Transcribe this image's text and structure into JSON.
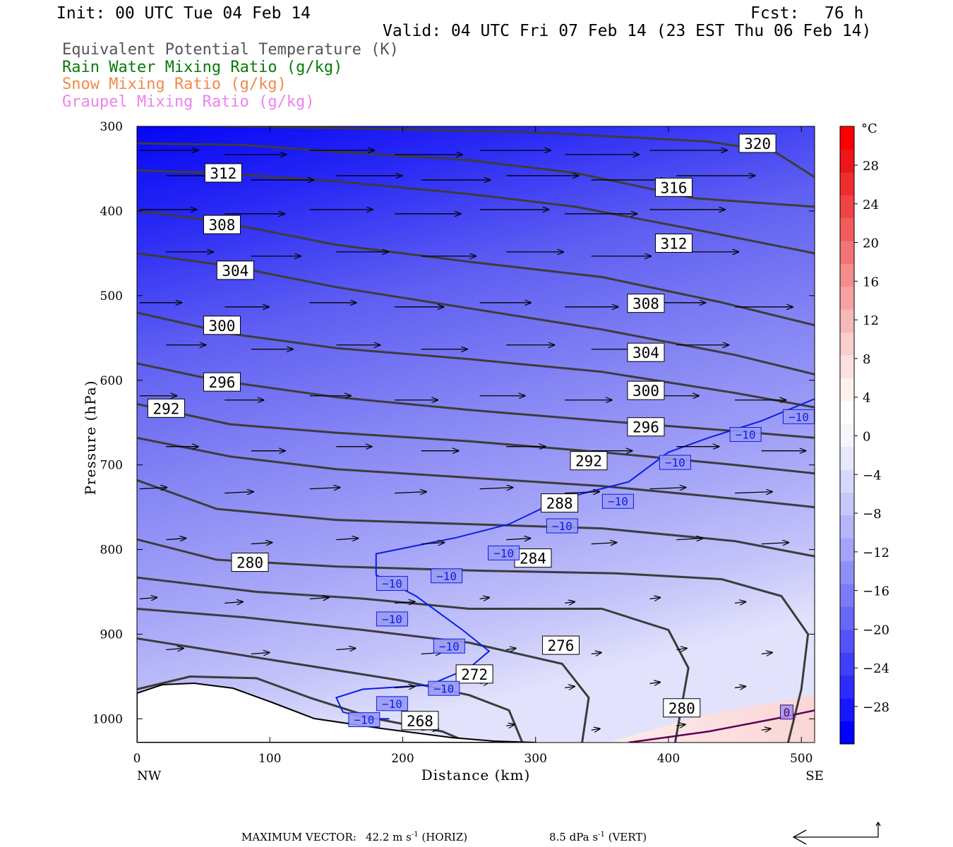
{
  "header": {
    "init": "Init: 00 UTC Tue 04 Feb 14",
    "fcst_label": "Fcst:",
    "fcst_value": "76 h",
    "valid": "Valid: 04 UTC Fri 07 Feb 14 (23 EST Thu 06 Feb 14)"
  },
  "legend": [
    {
      "text": "Equivalent Potential Temperature (K)",
      "color": "#555555"
    },
    {
      "text": "Rain Water Mixing Ratio (g/kg)",
      "color": "#0a7a0a"
    },
    {
      "text": "Snow Mixing Ratio (g/kg)",
      "color": "#f08a4b"
    },
    {
      "text": "Graupel Mixing Ratio (g/kg)",
      "color": "#ee82ee"
    }
  ],
  "footer": {
    "max_vector_label": "MAXIMUM VECTOR:",
    "horiz_value": "42.2 m s",
    "horiz_exp": "-1",
    "horiz_tag": "(HORIZ)",
    "vert_value": "8.5 dPa s",
    "vert_exp": "-1",
    "vert_tag": "(VERT)"
  },
  "chart_data": {
    "type": "cross-section",
    "xlabel": "Distance (km)",
    "ylabel": "Pressure (hPa)",
    "xlim": [
      0,
      510
    ],
    "ylim": [
      300,
      1028
    ],
    "x_ticks": [
      0,
      100,
      200,
      300,
      400,
      500
    ],
    "y_ticks": [
      300,
      400,
      500,
      600,
      700,
      800,
      900,
      1000
    ],
    "x_end_labels": [
      "NW",
      "SE"
    ],
    "colorbar": {
      "unit": "°C",
      "tick_labels": [
        "28",
        "24",
        "20",
        "16",
        "12",
        "8",
        "4",
        "0",
        "−4",
        "−8",
        "−12",
        "−16",
        "−20",
        "−24",
        "−28"
      ],
      "colors": [
        "#0000ff",
        "#1717fd",
        "#2b2bfc",
        "#3f3ffa",
        "#5353f9",
        "#6767f8",
        "#7b7bf8",
        "#8f8ff8",
        "#a3a3f9",
        "#b5b5fa",
        "#c7c7fb",
        "#d8d8fc",
        "#e8e8fd",
        "#f5f5fe",
        "#ffffff",
        "#fff0f0",
        "#fde0e0",
        "#fbcdcd",
        "#f9b8b8",
        "#f7a2a2",
        "#f58b8b",
        "#f37474",
        "#f25c5c",
        "#f04444",
        "#ef2d2d",
        "#ee1616",
        "#ff0000"
      ]
    },
    "theta_e_contours": [
      {
        "label": "268",
        "points": [
          [
            0,
            965
          ],
          [
            40,
            950
          ],
          [
            90,
            952
          ],
          [
            130,
            975
          ],
          [
            180,
            1000
          ],
          [
            230,
            1015
          ],
          [
            245,
            1025
          ]
        ]
      },
      {
        "label": "272",
        "points": [
          [
            0,
            905
          ],
          [
            40,
            915
          ],
          [
            120,
            935
          ],
          [
            200,
            955
          ],
          [
            250,
            972
          ],
          [
            280,
            990
          ],
          [
            290,
            1028
          ]
        ]
      },
      {
        "label": "276",
        "points": [
          [
            0,
            870
          ],
          [
            80,
            880
          ],
          [
            170,
            895
          ],
          [
            250,
            910
          ],
          [
            320,
            935
          ],
          [
            340,
            975
          ],
          [
            335,
            1028
          ]
        ]
      },
      {
        "label": "280",
        "points": [
          [
            0,
            833
          ],
          [
            90,
            850
          ],
          [
            170,
            858
          ],
          [
            250,
            870
          ],
          [
            350,
            870
          ],
          [
            400,
            895
          ],
          [
            415,
            940
          ],
          [
            405,
            1028
          ]
        ]
      },
      {
        "label": "284",
        "points": [
          [
            0,
            788
          ],
          [
            60,
            812
          ],
          [
            150,
            820
          ],
          [
            260,
            825
          ],
          [
            360,
            828
          ],
          [
            440,
            835
          ],
          [
            485,
            855
          ],
          [
            505,
            900
          ],
          [
            500,
            965
          ],
          [
            490,
            1028
          ]
        ]
      },
      {
        "label": "288",
        "points": [
          [
            0,
            718
          ],
          [
            60,
            752
          ],
          [
            150,
            765
          ],
          [
            250,
            770
          ],
          [
            350,
            775
          ],
          [
            450,
            790
          ],
          [
            510,
            808
          ]
        ]
      },
      {
        "label": "292",
        "points": [
          [
            0,
            668
          ],
          [
            70,
            690
          ],
          [
            150,
            705
          ],
          [
            250,
            715
          ],
          [
            350,
            725
          ],
          [
            450,
            740
          ],
          [
            510,
            750
          ]
        ]
      },
      {
        "label": "296",
        "points": [
          [
            0,
            628
          ],
          [
            70,
            652
          ],
          [
            150,
            662
          ],
          [
            250,
            672
          ],
          [
            350,
            685
          ],
          [
            450,
            700
          ],
          [
            510,
            710
          ]
        ]
      },
      {
        "label": "300",
        "points": [
          [
            0,
            580
          ],
          [
            60,
            600
          ],
          [
            150,
            620
          ],
          [
            250,
            635
          ],
          [
            350,
            648
          ],
          [
            450,
            660
          ],
          [
            510,
            668
          ]
        ]
      },
      {
        "label": "304",
        "points": [
          [
            0,
            520
          ],
          [
            70,
            545
          ],
          [
            150,
            562
          ],
          [
            250,
            575
          ],
          [
            350,
            590
          ],
          [
            450,
            615
          ],
          [
            510,
            632
          ]
        ]
      },
      {
        "label": "308",
        "points": [
          [
            0,
            450
          ],
          [
            70,
            465
          ],
          [
            150,
            490
          ],
          [
            250,
            515
          ],
          [
            350,
            540
          ],
          [
            450,
            570
          ],
          [
            510,
            593
          ]
        ]
      },
      {
        "label": "312",
        "points": [
          [
            0,
            400
          ],
          [
            60,
            412
          ],
          [
            150,
            440
          ],
          [
            250,
            460
          ],
          [
            350,
            478
          ],
          [
            440,
            508
          ],
          [
            510,
            535
          ]
        ]
      },
      {
        "label": "316",
        "points": [
          [
            0,
            352
          ],
          [
            60,
            355
          ],
          [
            150,
            365
          ],
          [
            250,
            380
          ],
          [
            330,
            395
          ],
          [
            430,
            425
          ],
          [
            510,
            450
          ]
        ]
      },
      {
        "label": "320",
        "points": [
          [
            0,
            320
          ],
          [
            80,
            322
          ],
          [
            150,
            330
          ],
          [
            250,
            340
          ],
          [
            330,
            355
          ],
          [
            420,
            385
          ],
          [
            510,
            395
          ]
        ]
      },
      {
        "label": "",
        "points": [
          [
            0,
            298
          ],
          [
            150,
            302
          ],
          [
            300,
            307
          ],
          [
            430,
            318
          ],
          [
            480,
            330
          ],
          [
            510,
            360
          ]
        ]
      }
    ],
    "theta_e_labels": [
      {
        "text": "312",
        "x": 65,
        "p": 355
      },
      {
        "text": "308",
        "x": 64,
        "p": 416
      },
      {
        "text": "304",
        "x": 74,
        "p": 470
      },
      {
        "text": "300",
        "x": 64,
        "p": 535
      },
      {
        "text": "296",
        "x": 64,
        "p": 602
      },
      {
        "text": "292",
        "x": 22,
        "p": 633
      },
      {
        "text": "280",
        "x": 85,
        "p": 815
      },
      {
        "text": "268",
        "x": 213,
        "p": 1002
      },
      {
        "text": "272",
        "x": 254,
        "p": 947
      },
      {
        "text": "276",
        "x": 319,
        "p": 913
      },
      {
        "text": "280",
        "x": 410,
        "p": 987
      },
      {
        "text": "284",
        "x": 298,
        "p": 810
      },
      {
        "text": "288",
        "x": 318,
        "p": 745
      },
      {
        "text": "292",
        "x": 340,
        "p": 695
      },
      {
        "text": "296",
        "x": 383,
        "p": 655
      },
      {
        "text": "300",
        "x": 383,
        "p": 612
      },
      {
        "text": "304",
        "x": 383,
        "p": 567
      },
      {
        "text": "308",
        "x": 383,
        "p": 509
      },
      {
        "text": "312",
        "x": 404,
        "p": 438
      },
      {
        "text": "316",
        "x": 404,
        "p": 372
      },
      {
        "text": "320",
        "x": 467,
        "p": 320
      }
    ],
    "temperature_contours": [
      {
        "label": "−10",
        "points": [
          [
            510,
            622
          ],
          [
            470,
            648
          ],
          [
            430,
            668
          ],
          [
            400,
            685
          ],
          [
            370,
            720
          ],
          [
            320,
            740
          ],
          [
            280,
            770
          ],
          [
            240,
            786
          ],
          [
            180,
            805
          ],
          [
            180,
            830
          ],
          [
            210,
            855
          ],
          [
            245,
            895
          ],
          [
            265,
            920
          ],
          [
            250,
            940
          ],
          [
            220,
            960
          ],
          [
            170,
            965
          ],
          [
            150,
            975
          ],
          [
            155,
            992
          ],
          [
            175,
            1000
          ],
          [
            190,
            1000
          ]
        ]
      },
      {
        "label": "0",
        "points": [
          [
            370,
            1028
          ],
          [
            430,
            1015
          ],
          [
            480,
            1000
          ],
          [
            510,
            990
          ]
        ]
      }
    ],
    "temperature_labels": [
      {
        "text": "−10",
        "x": 498,
        "p": 643
      },
      {
        "text": "−10",
        "x": 458,
        "p": 664
      },
      {
        "text": "−10",
        "x": 405,
        "p": 697
      },
      {
        "text": "−10",
        "x": 362,
        "p": 743
      },
      {
        "text": "−10",
        "x": 320,
        "p": 772
      },
      {
        "text": "−10",
        "x": 276,
        "p": 804
      },
      {
        "text": "−10",
        "x": 233,
        "p": 831
      },
      {
        "text": "−10",
        "x": 192,
        "p": 840
      },
      {
        "text": "−10",
        "x": 192,
        "p": 882
      },
      {
        "text": "−10",
        "x": 235,
        "p": 914
      },
      {
        "text": "−10",
        "x": 231,
        "p": 964
      },
      {
        "text": "−10",
        "x": 192,
        "p": 982
      },
      {
        "text": "−10",
        "x": 171,
        "p": 1001
      },
      {
        "text": "0",
        "x": 489,
        "p": 992
      }
    ]
  }
}
